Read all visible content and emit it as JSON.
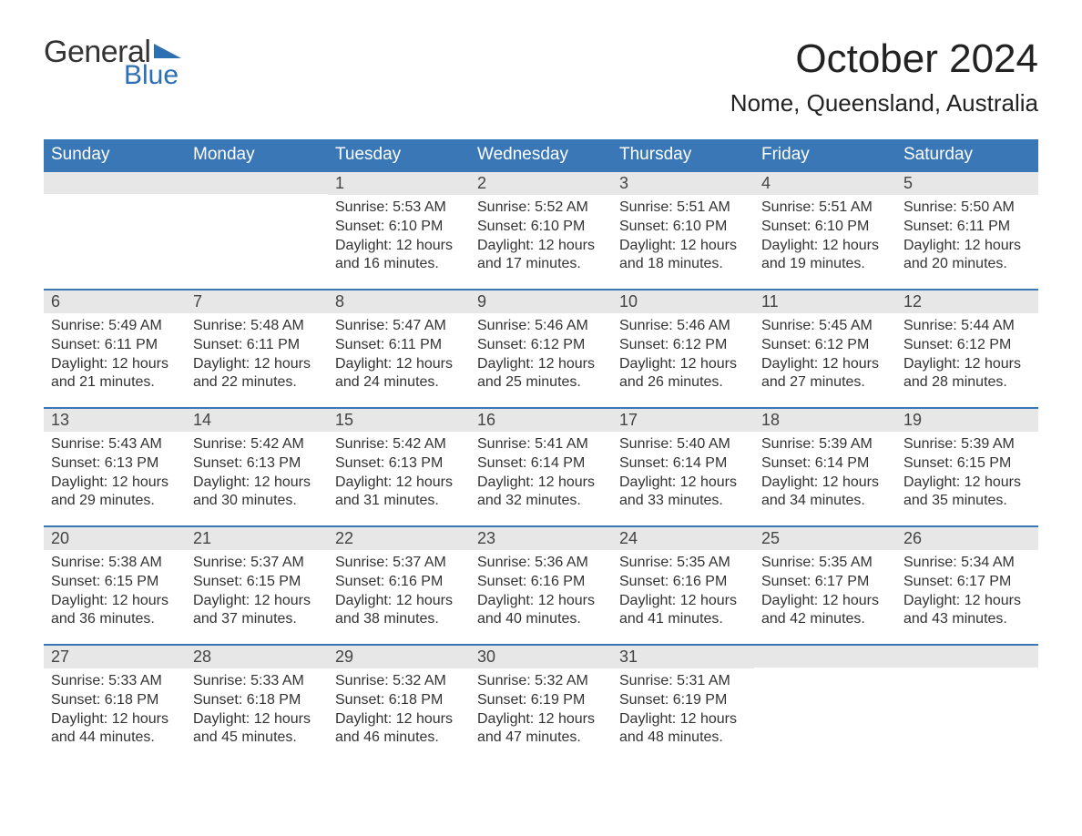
{
  "brand": {
    "word1": "General",
    "word2": "Blue",
    "word1_color": "#333333",
    "word2_color": "#2d6fb3",
    "flag_color": "#2d6fb3"
  },
  "title": "October 2024",
  "location": "Nome, Queensland, Australia",
  "colors": {
    "header_bg": "#3a77b6",
    "header_text": "#ffffff",
    "daynum_bg": "#e7e7e7",
    "week_border": "#3a77b6",
    "body_text": "#333333",
    "page_bg": "#ffffff"
  },
  "fonts": {
    "title_size_pt": 33,
    "location_size_pt": 20,
    "weekday_size_pt": 14,
    "daynum_size_pt": 14,
    "body_size_pt": 12
  },
  "weekdays": [
    "Sunday",
    "Monday",
    "Tuesday",
    "Wednesday",
    "Thursday",
    "Friday",
    "Saturday"
  ],
  "weeks": [
    [
      {
        "blank": true
      },
      {
        "blank": true
      },
      {
        "num": "1",
        "sunrise": "Sunrise: 5:53 AM",
        "sunset": "Sunset: 6:10 PM",
        "daylight": "Daylight: 12 hours and 16 minutes."
      },
      {
        "num": "2",
        "sunrise": "Sunrise: 5:52 AM",
        "sunset": "Sunset: 6:10 PM",
        "daylight": "Daylight: 12 hours and 17 minutes."
      },
      {
        "num": "3",
        "sunrise": "Sunrise: 5:51 AM",
        "sunset": "Sunset: 6:10 PM",
        "daylight": "Daylight: 12 hours and 18 minutes."
      },
      {
        "num": "4",
        "sunrise": "Sunrise: 5:51 AM",
        "sunset": "Sunset: 6:10 PM",
        "daylight": "Daylight: 12 hours and 19 minutes."
      },
      {
        "num": "5",
        "sunrise": "Sunrise: 5:50 AM",
        "sunset": "Sunset: 6:11 PM",
        "daylight": "Daylight: 12 hours and 20 minutes."
      }
    ],
    [
      {
        "num": "6",
        "sunrise": "Sunrise: 5:49 AM",
        "sunset": "Sunset: 6:11 PM",
        "daylight": "Daylight: 12 hours and 21 minutes."
      },
      {
        "num": "7",
        "sunrise": "Sunrise: 5:48 AM",
        "sunset": "Sunset: 6:11 PM",
        "daylight": "Daylight: 12 hours and 22 minutes."
      },
      {
        "num": "8",
        "sunrise": "Sunrise: 5:47 AM",
        "sunset": "Sunset: 6:11 PM",
        "daylight": "Daylight: 12 hours and 24 minutes."
      },
      {
        "num": "9",
        "sunrise": "Sunrise: 5:46 AM",
        "sunset": "Sunset: 6:12 PM",
        "daylight": "Daylight: 12 hours and 25 minutes."
      },
      {
        "num": "10",
        "sunrise": "Sunrise: 5:46 AM",
        "sunset": "Sunset: 6:12 PM",
        "daylight": "Daylight: 12 hours and 26 minutes."
      },
      {
        "num": "11",
        "sunrise": "Sunrise: 5:45 AM",
        "sunset": "Sunset: 6:12 PM",
        "daylight": "Daylight: 12 hours and 27 minutes."
      },
      {
        "num": "12",
        "sunrise": "Sunrise: 5:44 AM",
        "sunset": "Sunset: 6:12 PM",
        "daylight": "Daylight: 12 hours and 28 minutes."
      }
    ],
    [
      {
        "num": "13",
        "sunrise": "Sunrise: 5:43 AM",
        "sunset": "Sunset: 6:13 PM",
        "daylight": "Daylight: 12 hours and 29 minutes."
      },
      {
        "num": "14",
        "sunrise": "Sunrise: 5:42 AM",
        "sunset": "Sunset: 6:13 PM",
        "daylight": "Daylight: 12 hours and 30 minutes."
      },
      {
        "num": "15",
        "sunrise": "Sunrise: 5:42 AM",
        "sunset": "Sunset: 6:13 PM",
        "daylight": "Daylight: 12 hours and 31 minutes."
      },
      {
        "num": "16",
        "sunrise": "Sunrise: 5:41 AM",
        "sunset": "Sunset: 6:14 PM",
        "daylight": "Daylight: 12 hours and 32 minutes."
      },
      {
        "num": "17",
        "sunrise": "Sunrise: 5:40 AM",
        "sunset": "Sunset: 6:14 PM",
        "daylight": "Daylight: 12 hours and 33 minutes."
      },
      {
        "num": "18",
        "sunrise": "Sunrise: 5:39 AM",
        "sunset": "Sunset: 6:14 PM",
        "daylight": "Daylight: 12 hours and 34 minutes."
      },
      {
        "num": "19",
        "sunrise": "Sunrise: 5:39 AM",
        "sunset": "Sunset: 6:15 PM",
        "daylight": "Daylight: 12 hours and 35 minutes."
      }
    ],
    [
      {
        "num": "20",
        "sunrise": "Sunrise: 5:38 AM",
        "sunset": "Sunset: 6:15 PM",
        "daylight": "Daylight: 12 hours and 36 minutes."
      },
      {
        "num": "21",
        "sunrise": "Sunrise: 5:37 AM",
        "sunset": "Sunset: 6:15 PM",
        "daylight": "Daylight: 12 hours and 37 minutes."
      },
      {
        "num": "22",
        "sunrise": "Sunrise: 5:37 AM",
        "sunset": "Sunset: 6:16 PM",
        "daylight": "Daylight: 12 hours and 38 minutes."
      },
      {
        "num": "23",
        "sunrise": "Sunrise: 5:36 AM",
        "sunset": "Sunset: 6:16 PM",
        "daylight": "Daylight: 12 hours and 40 minutes."
      },
      {
        "num": "24",
        "sunrise": "Sunrise: 5:35 AM",
        "sunset": "Sunset: 6:16 PM",
        "daylight": "Daylight: 12 hours and 41 minutes."
      },
      {
        "num": "25",
        "sunrise": "Sunrise: 5:35 AM",
        "sunset": "Sunset: 6:17 PM",
        "daylight": "Daylight: 12 hours and 42 minutes."
      },
      {
        "num": "26",
        "sunrise": "Sunrise: 5:34 AM",
        "sunset": "Sunset: 6:17 PM",
        "daylight": "Daylight: 12 hours and 43 minutes."
      }
    ],
    [
      {
        "num": "27",
        "sunrise": "Sunrise: 5:33 AM",
        "sunset": "Sunset: 6:18 PM",
        "daylight": "Daylight: 12 hours and 44 minutes."
      },
      {
        "num": "28",
        "sunrise": "Sunrise: 5:33 AM",
        "sunset": "Sunset: 6:18 PM",
        "daylight": "Daylight: 12 hours and 45 minutes."
      },
      {
        "num": "29",
        "sunrise": "Sunrise: 5:32 AM",
        "sunset": "Sunset: 6:18 PM",
        "daylight": "Daylight: 12 hours and 46 minutes."
      },
      {
        "num": "30",
        "sunrise": "Sunrise: 5:32 AM",
        "sunset": "Sunset: 6:19 PM",
        "daylight": "Daylight: 12 hours and 47 minutes."
      },
      {
        "num": "31",
        "sunrise": "Sunrise: 5:31 AM",
        "sunset": "Sunset: 6:19 PM",
        "daylight": "Daylight: 12 hours and 48 minutes."
      },
      {
        "blank": true
      },
      {
        "blank": true
      }
    ]
  ]
}
